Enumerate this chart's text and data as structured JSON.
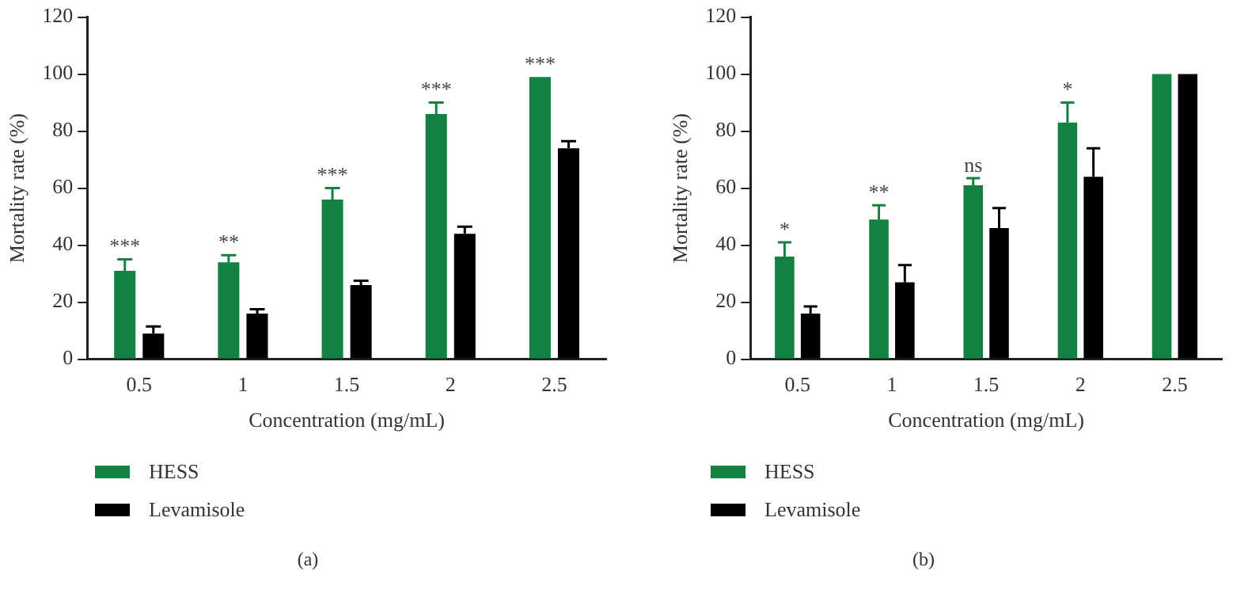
{
  "chart_data": [
    {
      "type": "bar",
      "xlabel": "Concentration (mg/mL)",
      "ylabel": "Mortality rate (%)",
      "categories": [
        "0.5",
        "1",
        "1.5",
        "2",
        "2.5"
      ],
      "series": [
        {
          "name": "HESS",
          "color": "#138241",
          "values": [
            31,
            34,
            56,
            86,
            99
          ],
          "errors": [
            [
              31,
              35
            ],
            [
              34,
              36.5
            ],
            [
              56,
              60
            ],
            [
              86,
              90
            ],
            null
          ]
        },
        {
          "name": "Levamisole",
          "color": "#000000",
          "values": [
            9,
            16,
            26,
            44,
            74
          ],
          "errors": [
            [
              9,
              11.5
            ],
            [
              16,
              17.5
            ],
            [
              26,
              27.5
            ],
            [
              44,
              46.5
            ],
            [
              74,
              76.5
            ]
          ]
        }
      ],
      "ylim": [
        0,
        120
      ],
      "yticks": [
        0,
        20,
        40,
        60,
        80,
        100,
        120
      ],
      "grid": false,
      "legend": "bottom left",
      "annotations": [
        {
          "text": "***",
          "x": "0.5",
          "y": 35
        },
        {
          "text": "**",
          "x": "1",
          "y": 36.5
        },
        {
          "text": "***",
          "x": "1.5",
          "y": 60
        },
        {
          "text": "***",
          "x": "2",
          "y": 90
        },
        {
          "text": "***",
          "x": "2.5",
          "y": 99
        },
        "(a)"
      ]
    },
    {
      "type": "bar",
      "xlabel": "Concentration (mg/mL)",
      "ylabel": "Mortality rate (%)",
      "categories": [
        "0.5",
        "1",
        "1.5",
        "2",
        "2.5"
      ],
      "series": [
        {
          "name": "HESS",
          "color": "#138241",
          "values": [
            36,
            49,
            61,
            83,
            100
          ],
          "errors": [
            [
              36,
              41
            ],
            [
              49,
              54
            ],
            [
              61,
              63.5
            ],
            [
              83,
              90
            ],
            null
          ]
        },
        {
          "name": "Levamisole",
          "color": "#000000",
          "values": [
            16,
            27,
            46,
            64,
            100
          ],
          "errors": [
            [
              16,
              18.5
            ],
            [
              27,
              33
            ],
            [
              46,
              53
            ],
            [
              64,
              74
            ],
            null
          ]
        }
      ],
      "ylim": [
        0,
        120
      ],
      "yticks": [
        0,
        20,
        40,
        60,
        80,
        100,
        120
      ],
      "grid": false,
      "legend": "bottom left",
      "annotations": [
        {
          "text": "*",
          "x": "0.5",
          "y": 41
        },
        {
          "text": "**",
          "x": "1",
          "y": 54
        },
        {
          "text": "ns",
          "x": "1.5",
          "y": 63.5
        },
        {
          "text": "*",
          "x": "2",
          "y": 90
        },
        "(b)"
      ]
    }
  ]
}
